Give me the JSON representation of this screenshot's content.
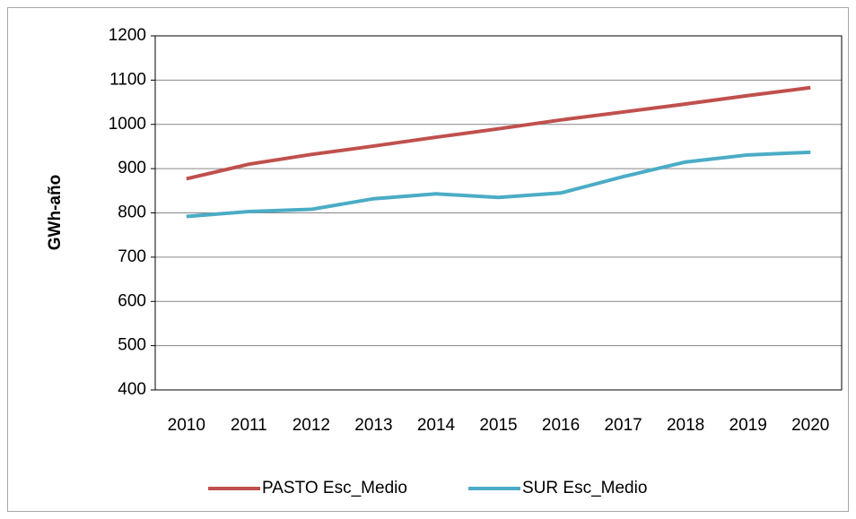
{
  "chart_data": {
    "type": "line",
    "ylabel": "GWh-año",
    "categories": [
      "2010",
      "2011",
      "2012",
      "2013",
      "2014",
      "2015",
      "2016",
      "2017",
      "2018",
      "2019",
      "2020"
    ],
    "series": [
      {
        "name": "PASTO Esc_Medio",
        "color": "#c0504d",
        "values": [
          877,
          910,
          932,
          951,
          971,
          990,
          1010,
          1028,
          1046,
          1065,
          1083
        ]
      },
      {
        "name": "SUR Esc_Medio",
        "color": "#4bacc6",
        "values": [
          792,
          803,
          808,
          832,
          843,
          835,
          845,
          882,
          915,
          931,
          937
        ]
      }
    ],
    "ylim": [
      400,
      1200
    ],
    "yticks": [
      400,
      500,
      600,
      700,
      800,
      900,
      1000,
      1100,
      1200
    ],
    "grid": true,
    "legend": "bottom"
  }
}
